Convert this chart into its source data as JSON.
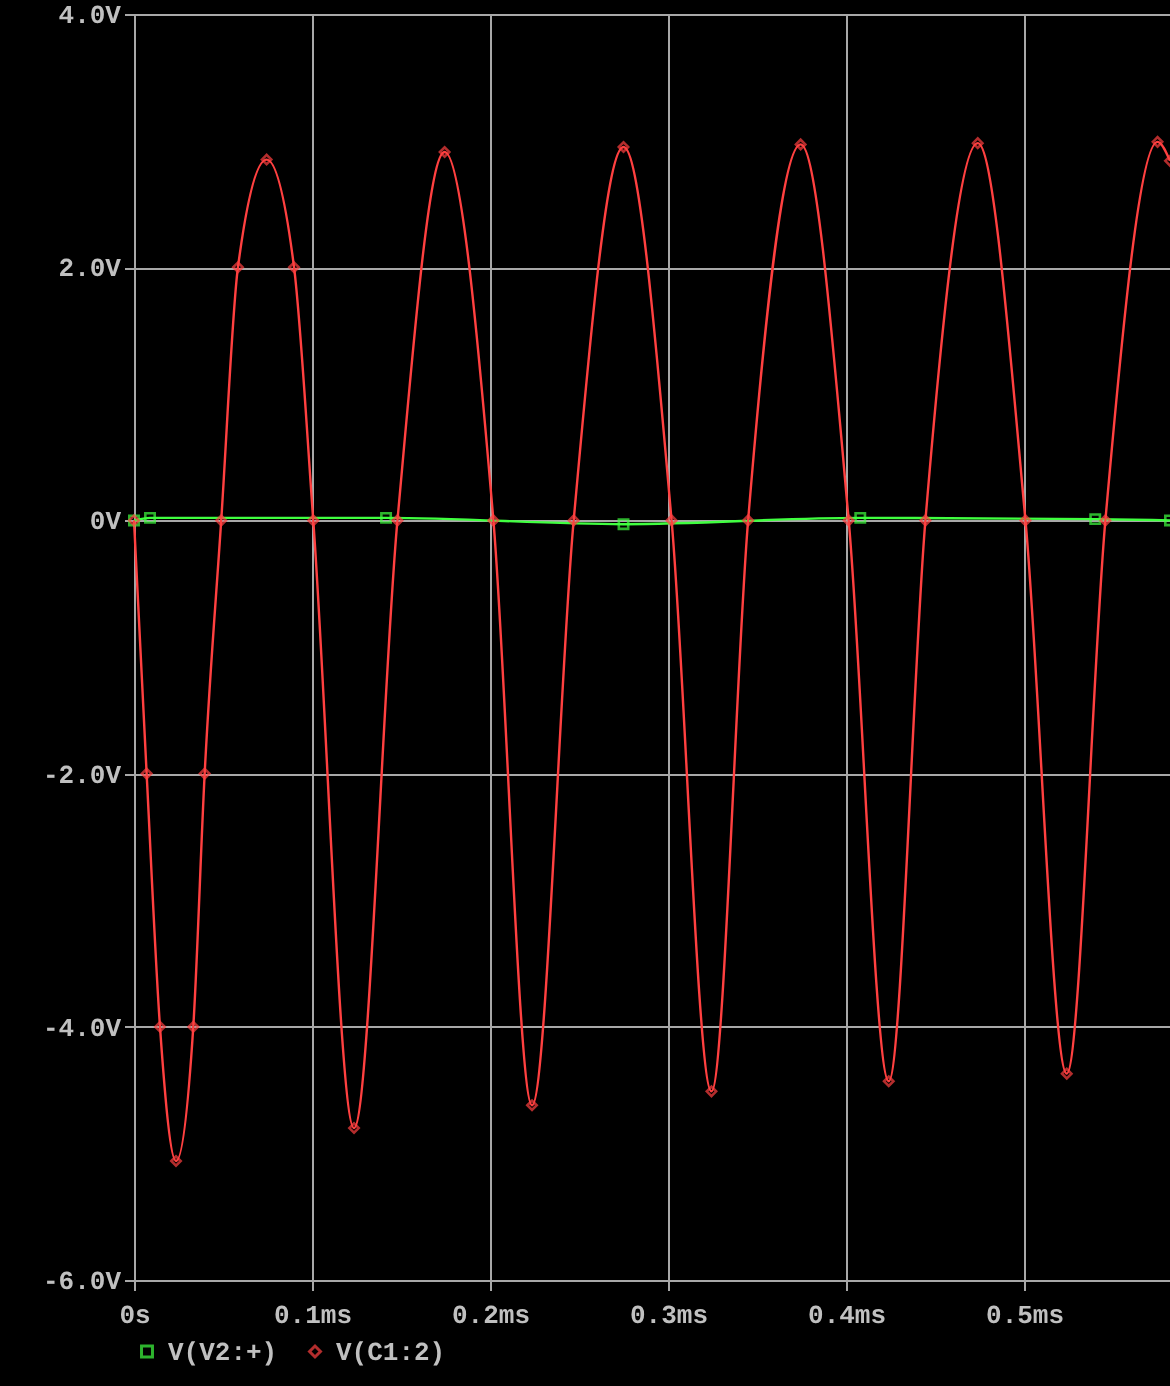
{
  "chart_data": {
    "type": "line",
    "xlim": [
      0,
      0.582
    ],
    "xticks": [
      {
        "value": 0,
        "label": "0s"
      },
      {
        "value": 0.1,
        "label": "0.1ms"
      },
      {
        "value": 0.2,
        "label": "0.2ms"
      },
      {
        "value": 0.3,
        "label": "0.3ms"
      },
      {
        "value": 0.4,
        "label": "0.4ms"
      },
      {
        "value": 0.5,
        "label": "0.5ms"
      }
    ],
    "ylim": [
      -6,
      4
    ],
    "yticks": [
      {
        "value": 4,
        "label": "4.0V"
      },
      {
        "value": 2,
        "label": "2.0V"
      },
      {
        "value": 0,
        "label": "0V"
      },
      {
        "value": -2,
        "label": "-2.0V"
      },
      {
        "value": -4,
        "label": "-4.0V"
      },
      {
        "value": -6,
        "label": "-6.0V"
      }
    ],
    "grid": true,
    "legend": "bottom left",
    "line_style": "solid",
    "series": [
      {
        "name": "V(V2:+)",
        "color": "#40ff40",
        "marker": "square",
        "x": [
          0,
          0.009,
          0.1416,
          0.275,
          0.408,
          0.54,
          0.582
        ],
        "values": [
          0,
          0.02,
          0.02,
          -0.03,
          0.02,
          0.01,
          0
        ]
      },
      {
        "name": "V(C1:2)",
        "color": "#ff4040",
        "marker": "diamond",
        "x": [
          0,
          0.0071,
          0.0146,
          0.0236,
          0.0333,
          0.0397,
          0.049,
          0.0584,
          0.0745,
          0.0899,
          0.1007,
          0.1236,
          0.148,
          0.1745,
          0.2019,
          0.2236,
          0.247,
          0.275,
          0.302,
          0.3244,
          0.345,
          0.3745,
          0.4015,
          0.424,
          0.4446,
          0.474,
          0.5008,
          0.524,
          0.5457,
          0.575,
          0.582
        ],
        "values": [
          0,
          -2.0,
          -4.0,
          -5.06,
          -4.0,
          -2.0,
          0,
          2.0,
          2.85,
          2.0,
          0,
          -4.8,
          0,
          2.91,
          0,
          -4.62,
          0,
          2.95,
          0,
          -4.51,
          0,
          2.97,
          0,
          -4.43,
          0,
          2.98,
          0,
          -4.37,
          0,
          2.99,
          2.84
        ]
      }
    ]
  }
}
